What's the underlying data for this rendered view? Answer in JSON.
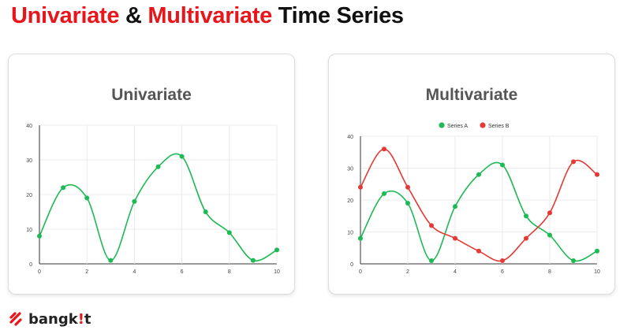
{
  "slide": {
    "title_part1": "Univariate",
    "title_amp": "&",
    "title_part2": "Multivariate",
    "title_part3": "Time Series"
  },
  "brand": {
    "name": "bangkit",
    "accent_color": "#e8161b"
  },
  "colors": {
    "title_accent": "#e8161b",
    "green": "#1db954",
    "red": "#e53935",
    "grid": "#e6e6e6",
    "card_title": "#555555"
  },
  "chart_data": [
    {
      "type": "line",
      "title": "Univariate",
      "xlim": [
        0,
        10
      ],
      "ylim": [
        0,
        40
      ],
      "x_ticks": [
        0,
        2,
        4,
        6,
        8,
        10
      ],
      "y_ticks": [
        0,
        10,
        20,
        30,
        40
      ],
      "smooth": true,
      "grid": true,
      "legend": null,
      "series": [
        {
          "color": "#1db954",
          "x": [
            0,
            1,
            2,
            3,
            4,
            5,
            6,
            7,
            8,
            9,
            10
          ],
          "y": [
            8,
            22,
            19,
            1,
            18,
            28,
            31,
            15,
            9,
            1,
            4
          ]
        }
      ]
    },
    {
      "type": "line",
      "title": "Multivariate",
      "xlim": [
        0,
        10
      ],
      "ylim": [
        0,
        40
      ],
      "x_ticks": [
        0,
        2,
        4,
        6,
        8,
        10
      ],
      "y_ticks": [
        0,
        10,
        20,
        30,
        40
      ],
      "smooth": true,
      "grid": true,
      "legend": "top-center",
      "series": [
        {
          "name": "Series A",
          "color": "#1db954",
          "x": [
            0,
            1,
            2,
            3,
            4,
            5,
            6,
            7,
            8,
            9,
            10
          ],
          "y": [
            8,
            22,
            19,
            1,
            18,
            28,
            31,
            15,
            9,
            1,
            4
          ]
        },
        {
          "name": "Series B",
          "color": "#e53935",
          "x": [
            0,
            1,
            2,
            3,
            4,
            5,
            6,
            7,
            8,
            9,
            10
          ],
          "y": [
            24,
            36,
            24,
            12,
            8,
            4,
            1,
            8,
            16,
            32,
            28
          ]
        }
      ]
    }
  ]
}
